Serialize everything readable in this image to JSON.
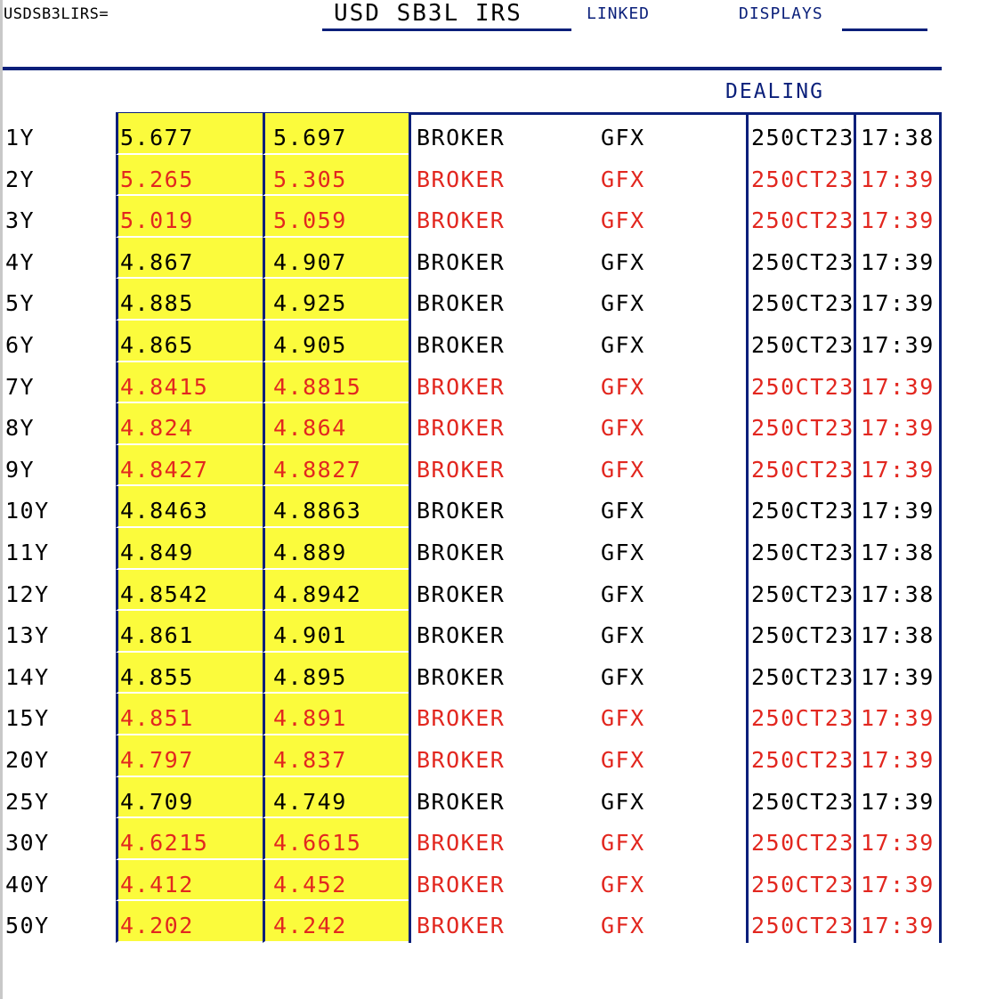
{
  "header": {
    "ric": "USDSB3LIRS=",
    "title": "USD SB3L IRS",
    "linked_label": "LINKED",
    "displays_label": "DISPLAYS",
    "dealing_label": "DEALING"
  },
  "colors": {
    "accent_blue": "#0a1f7a",
    "quote_bg_yellow": "#fbfb3c",
    "updated_red": "#e2271f",
    "normal_black": "#000000"
  },
  "rows": [
    {
      "tenor": "1Y",
      "bid": "5.677",
      "ask": "5.697",
      "source": "BROKER",
      "contributor": "GFX",
      "date": "250CT23",
      "time": "17:38",
      "status": "black"
    },
    {
      "tenor": "2Y",
      "bid": "5.265",
      "ask": "5.305",
      "source": "BROKER",
      "contributor": "GFX",
      "date": "250CT23",
      "time": "17:39",
      "status": "red"
    },
    {
      "tenor": "3Y",
      "bid": "5.019",
      "ask": "5.059",
      "source": "BROKER",
      "contributor": "GFX",
      "date": "250CT23",
      "time": "17:39",
      "status": "red"
    },
    {
      "tenor": "4Y",
      "bid": "4.867",
      "ask": "4.907",
      "source": "BROKER",
      "contributor": "GFX",
      "date": "250CT23",
      "time": "17:39",
      "status": "black"
    },
    {
      "tenor": "5Y",
      "bid": "4.885",
      "ask": "4.925",
      "source": "BROKER",
      "contributor": "GFX",
      "date": "250CT23",
      "time": "17:39",
      "status": "black"
    },
    {
      "tenor": "6Y",
      "bid": "4.865",
      "ask": "4.905",
      "source": "BROKER",
      "contributor": "GFX",
      "date": "250CT23",
      "time": "17:39",
      "status": "black"
    },
    {
      "tenor": "7Y",
      "bid": "4.8415",
      "ask": "4.8815",
      "source": "BROKER",
      "contributor": "GFX",
      "date": "250CT23",
      "time": "17:39",
      "status": "red"
    },
    {
      "tenor": "8Y",
      "bid": "4.824",
      "ask": "4.864",
      "source": "BROKER",
      "contributor": "GFX",
      "date": "250CT23",
      "time": "17:39",
      "status": "red"
    },
    {
      "tenor": "9Y",
      "bid": "4.8427",
      "ask": "4.8827",
      "source": "BROKER",
      "contributor": "GFX",
      "date": "250CT23",
      "time": "17:39",
      "status": "red"
    },
    {
      "tenor": "10Y",
      "bid": "4.8463",
      "ask": "4.8863",
      "source": "BROKER",
      "contributor": "GFX",
      "date": "250CT23",
      "time": "17:39",
      "status": "black"
    },
    {
      "tenor": "11Y",
      "bid": "4.849",
      "ask": "4.889",
      "source": "BROKER",
      "contributor": "GFX",
      "date": "250CT23",
      "time": "17:38",
      "status": "black"
    },
    {
      "tenor": "12Y",
      "bid": "4.8542",
      "ask": "4.8942",
      "source": "BROKER",
      "contributor": "GFX",
      "date": "250CT23",
      "time": "17:38",
      "status": "black"
    },
    {
      "tenor": "13Y",
      "bid": "4.861",
      "ask": "4.901",
      "source": "BROKER",
      "contributor": "GFX",
      "date": "250CT23",
      "time": "17:38",
      "status": "black"
    },
    {
      "tenor": "14Y",
      "bid": "4.855",
      "ask": "4.895",
      "source": "BROKER",
      "contributor": "GFX",
      "date": "250CT23",
      "time": "17:39",
      "status": "black"
    },
    {
      "tenor": "15Y",
      "bid": "4.851",
      "ask": "4.891",
      "source": "BROKER",
      "contributor": "GFX",
      "date": "250CT23",
      "time": "17:39",
      "status": "red"
    },
    {
      "tenor": "20Y",
      "bid": "4.797",
      "ask": "4.837",
      "source": "BROKER",
      "contributor": "GFX",
      "date": "250CT23",
      "time": "17:39",
      "status": "red"
    },
    {
      "tenor": "25Y",
      "bid": "4.709",
      "ask": "4.749",
      "source": "BROKER",
      "contributor": "GFX",
      "date": "250CT23",
      "time": "17:39",
      "status": "black"
    },
    {
      "tenor": "30Y",
      "bid": "4.6215",
      "ask": "4.6615",
      "source": "BROKER",
      "contributor": "GFX",
      "date": "250CT23",
      "time": "17:39",
      "status": "red"
    },
    {
      "tenor": "40Y",
      "bid": "4.412",
      "ask": "4.452",
      "source": "BROKER",
      "contributor": "GFX",
      "date": "250CT23",
      "time": "17:39",
      "status": "red"
    },
    {
      "tenor": "50Y",
      "bid": "4.202",
      "ask": "4.242",
      "source": "BROKER",
      "contributor": "GFX",
      "date": "250CT23",
      "time": "17:39",
      "status": "red"
    }
  ]
}
